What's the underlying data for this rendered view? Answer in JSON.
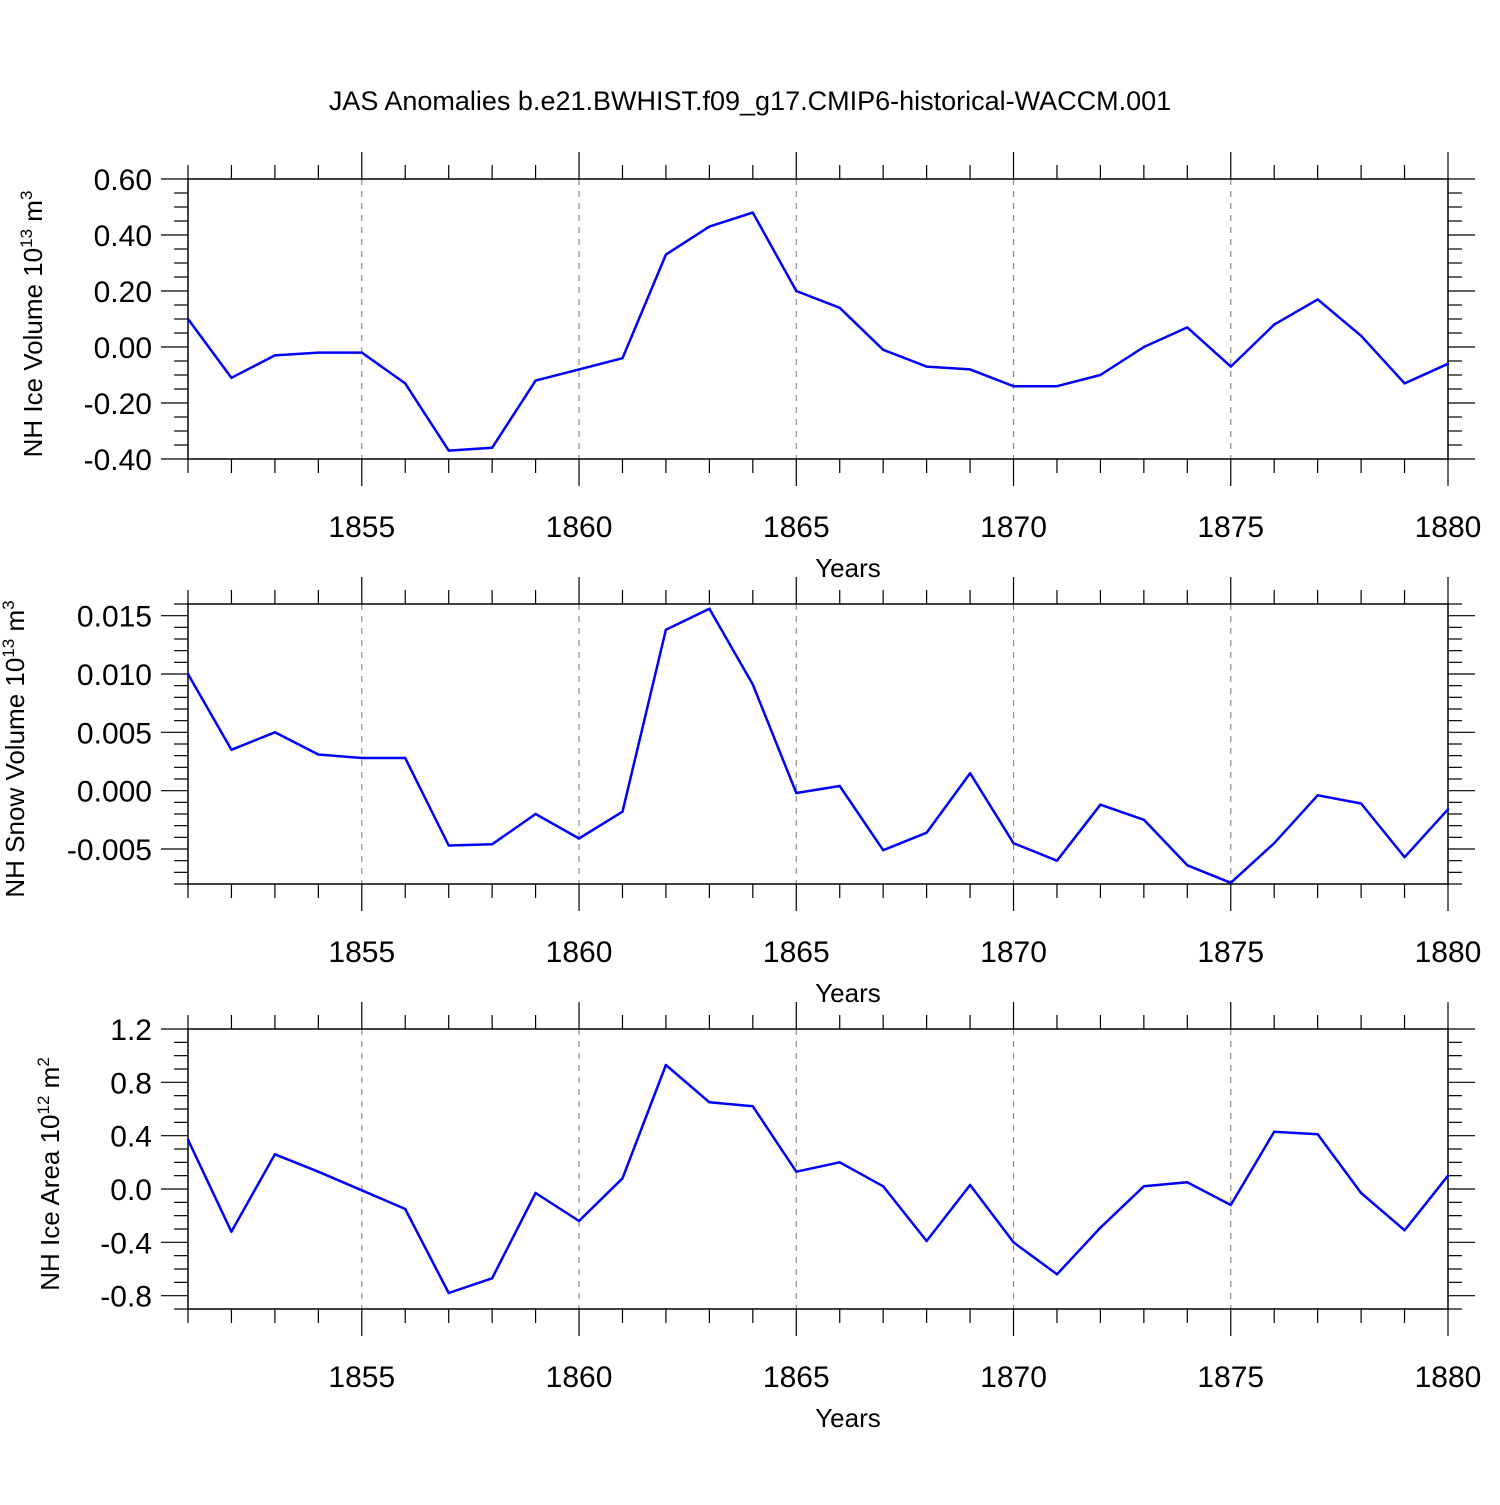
{
  "figure": {
    "title": "JAS Anomalies b.e21.BWHIST.f09_g17.CMIP6-historical-WACCM.001",
    "line_color": "#0000ff",
    "grid_color": "#8c8c8c"
  },
  "chart_data": [
    {
      "type": "line",
      "ylabel": "NH Ice Volume 10",
      "ylabel_sup": "13",
      "ylabel_unit": " m",
      "ylabel_unit_sup": "3",
      "xlabel": "Years",
      "xlim": [
        1851,
        1880
      ],
      "ylim": [
        -0.4,
        0.6
      ],
      "x_ticks": [
        1855,
        1860,
        1865,
        1870,
        1875,
        1880
      ],
      "x_tick_labels": [
        "1855",
        "1860",
        "1865",
        "1870",
        "1875",
        "1880"
      ],
      "y_ticks": [
        -0.4,
        -0.2,
        0.0,
        0.2,
        0.4,
        0.6
      ],
      "y_tick_labels": [
        "-0.40",
        "-0.20",
        "0.00",
        "0.20",
        "0.40",
        "0.60"
      ],
      "y_minor_step": 0.05,
      "grid": "vertical dashed at major x ticks",
      "x": [
        1851,
        1852,
        1853,
        1854,
        1855,
        1856,
        1857,
        1858,
        1859,
        1860,
        1861,
        1862,
        1863,
        1864,
        1865,
        1866,
        1867,
        1868,
        1869,
        1870,
        1871,
        1872,
        1873,
        1874,
        1875,
        1876,
        1877,
        1878,
        1879,
        1880
      ],
      "values": [
        0.1,
        -0.11,
        -0.03,
        -0.02,
        -0.02,
        -0.13,
        -0.37,
        -0.36,
        -0.12,
        -0.08,
        -0.04,
        0.33,
        0.43,
        0.48,
        0.2,
        0.14,
        -0.01,
        -0.07,
        -0.08,
        -0.14,
        -0.14,
        -0.1,
        0.0,
        0.07,
        -0.07,
        0.08,
        0.17,
        0.04,
        -0.13,
        -0.06
      ]
    },
    {
      "type": "line",
      "ylabel": "NH Snow Volume 10",
      "ylabel_sup": "13",
      "ylabel_unit": " m",
      "ylabel_unit_sup": "3",
      "xlabel": "Years",
      "xlim": [
        1851,
        1880
      ],
      "ylim": [
        -0.008,
        0.016
      ],
      "x_ticks": [
        1855,
        1860,
        1865,
        1870,
        1875,
        1880
      ],
      "x_tick_labels": [
        "1855",
        "1860",
        "1865",
        "1870",
        "1875",
        "1880"
      ],
      "y_ticks": [
        -0.005,
        0.0,
        0.005,
        0.01,
        0.015
      ],
      "y_tick_labels": [
        "-0.005",
        "0.000",
        "0.005",
        "0.010",
        "0.015"
      ],
      "y_minor_step": 0.001,
      "grid": "vertical dashed at major x ticks",
      "x": [
        1851,
        1852,
        1853,
        1854,
        1855,
        1856,
        1857,
        1858,
        1859,
        1860,
        1861,
        1862,
        1863,
        1864,
        1865,
        1866,
        1867,
        1868,
        1869,
        1870,
        1871,
        1872,
        1873,
        1874,
        1875,
        1876,
        1877,
        1878,
        1879,
        1880
      ],
      "values": [
        0.01,
        0.0035,
        0.005,
        0.0031,
        0.0028,
        0.0028,
        -0.0047,
        -0.0046,
        -0.002,
        -0.0041,
        -0.0018,
        0.0138,
        0.0156,
        0.0091,
        -0.0002,
        0.0004,
        -0.0051,
        -0.0036,
        0.0015,
        -0.0045,
        -0.006,
        -0.0012,
        -0.0025,
        -0.0064,
        -0.0079,
        -0.0045,
        -0.0004,
        -0.0011,
        -0.0057,
        -0.0016
      ]
    },
    {
      "type": "line",
      "ylabel": "NH Ice Area 10",
      "ylabel_sup": "12",
      "ylabel_unit": " m",
      "ylabel_unit_sup": "2",
      "xlabel": "Years",
      "xlim": [
        1851,
        1880
      ],
      "ylim": [
        -0.9,
        1.2
      ],
      "x_ticks": [
        1855,
        1860,
        1865,
        1870,
        1875,
        1880
      ],
      "x_tick_labels": [
        "1855",
        "1860",
        "1865",
        "1870",
        "1875",
        "1880"
      ],
      "y_ticks": [
        -0.8,
        -0.4,
        0.0,
        0.4,
        0.8,
        1.2
      ],
      "y_tick_labels": [
        "-0.8",
        "-0.4",
        "0.0",
        "0.4",
        "0.8",
        "1.2"
      ],
      "y_minor_step": 0.1,
      "grid": "vertical dashed at major x ticks",
      "x": [
        1851,
        1852,
        1853,
        1854,
        1855,
        1856,
        1857,
        1858,
        1859,
        1860,
        1861,
        1862,
        1863,
        1864,
        1865,
        1866,
        1867,
        1868,
        1869,
        1870,
        1871,
        1872,
        1873,
        1874,
        1875,
        1876,
        1877,
        1878,
        1879,
        1880
      ],
      "values": [
        0.37,
        -0.32,
        0.26,
        0.13,
        -0.01,
        -0.15,
        -0.78,
        -0.67,
        -0.03,
        -0.24,
        0.08,
        0.93,
        0.65,
        0.62,
        0.13,
        0.2,
        0.02,
        -0.39,
        0.03,
        -0.4,
        -0.64,
        -0.29,
        0.02,
        0.05,
        -0.12,
        0.43,
        0.41,
        -0.03,
        -0.31,
        0.1
      ]
    }
  ]
}
